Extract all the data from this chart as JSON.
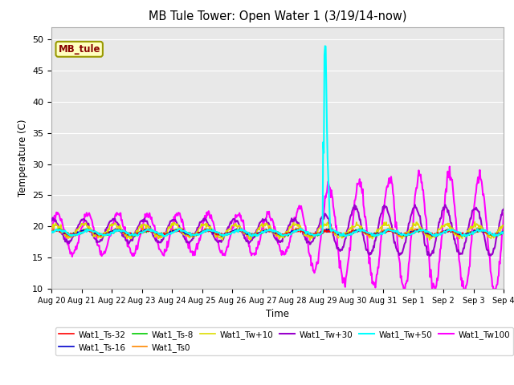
{
  "title": "MB Tule Tower: Open Water 1 (3/19/14-now)",
  "xlabel": "Time",
  "ylabel": "Temperature (C)",
  "ylim": [
    10,
    52
  ],
  "yticks": [
    10,
    15,
    20,
    25,
    30,
    35,
    40,
    45,
    50
  ],
  "bg_color": "#e8e8e8",
  "legend_label": "MB_tule",
  "series": {
    "Wat1_Ts-32": {
      "color": "#ff0000",
      "lw": 1.2
    },
    "Wat1_Ts-16": {
      "color": "#0000cc",
      "lw": 1.2
    },
    "Wat1_Ts-8": {
      "color": "#00cc00",
      "lw": 1.2
    },
    "Wat1_Ts0": {
      "color": "#ff8800",
      "lw": 1.2
    },
    "Wat1_Tw+10": {
      "color": "#dddd00",
      "lw": 1.2
    },
    "Wat1_Tw+30": {
      "color": "#9900cc",
      "lw": 1.5
    },
    "Wat1_Tw+50": {
      "color": "#00ffff",
      "lw": 1.5
    },
    "Wat1_Tw100": {
      "color": "#ff00ff",
      "lw": 1.5
    }
  },
  "legend_entries": [
    {
      "label": "Wat1_Ts-32",
      "color": "#ff0000",
      "lw": 1.2
    },
    {
      "label": "Wat1_Ts-16",
      "color": "#0000cc",
      "lw": 1.2
    },
    {
      "label": "Wat1_Ts-8",
      "color": "#00cc00",
      "lw": 1.2
    },
    {
      "label": "Wat1_Ts0",
      "color": "#ff8800",
      "lw": 1.2
    },
    {
      "label": "Wat1_Tw+10",
      "color": "#dddd00",
      "lw": 1.2
    },
    {
      "label": "Wat1_Tw+30",
      "color": "#9900cc",
      "lw": 1.5
    },
    {
      "label": "Wat1_Tw+50",
      "color": "#00ffff",
      "lw": 1.5
    },
    {
      "label": "Wat1_Tw100",
      "color": "#ff00ff",
      "lw": 1.5
    }
  ]
}
